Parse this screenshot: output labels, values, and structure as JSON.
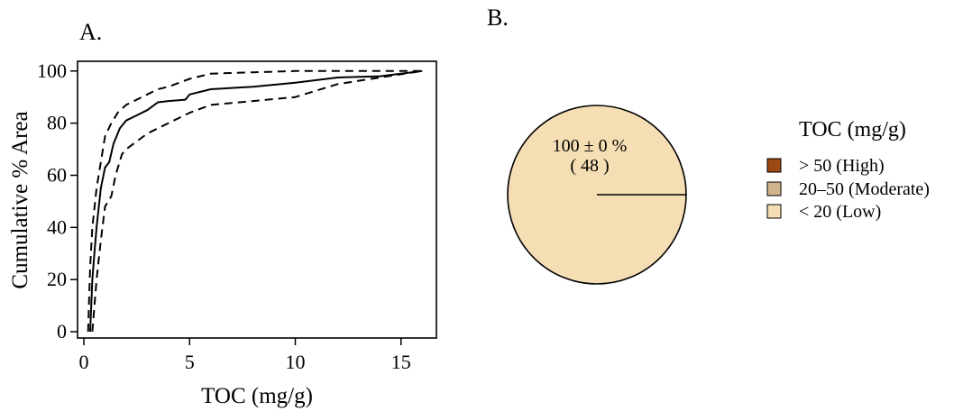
{
  "panels": {
    "a": {
      "label": "A."
    },
    "b": {
      "label": "B."
    }
  },
  "chart_data": [
    {
      "type": "line",
      "xlabel": "TOC (mg/g)",
      "ylabel": "Cumulative % Area",
      "xlim": [
        0,
        16.5
      ],
      "ylim": [
        0,
        100
      ],
      "xticks": [
        0,
        5,
        10,
        15
      ],
      "yticks": [
        0,
        20,
        40,
        60,
        80,
        100
      ],
      "grid": false,
      "series": [
        {
          "style": "solid",
          "color": "#000000",
          "points": [
            [
              0.3,
              0
            ],
            [
              0.4,
              20
            ],
            [
              0.5,
              30
            ],
            [
              0.6,
              40
            ],
            [
              0.8,
              55
            ],
            [
              1.0,
              63
            ],
            [
              1.2,
              65
            ],
            [
              1.4,
              72
            ],
            [
              1.7,
              78
            ],
            [
              2.0,
              81
            ],
            [
              2.5,
              83
            ],
            [
              3.0,
              85
            ],
            [
              3.5,
              88
            ],
            [
              4.0,
              88.5
            ],
            [
              4.8,
              89
            ],
            [
              5.0,
              91
            ],
            [
              6.0,
              93
            ],
            [
              8.0,
              94
            ],
            [
              10.0,
              95.5
            ],
            [
              12.0,
              97.5
            ],
            [
              14.0,
              98
            ],
            [
              15.0,
              99
            ],
            [
              16.0,
              100
            ]
          ]
        },
        {
          "style": "dashed",
          "color": "#000000",
          "points": [
            [
              0.2,
              0
            ],
            [
              0.3,
              25
            ],
            [
              0.4,
              40
            ],
            [
              0.6,
              55
            ],
            [
              0.8,
              65
            ],
            [
              1.0,
              75
            ],
            [
              1.3,
              80
            ],
            [
              1.6,
              84
            ],
            [
              2.0,
              87
            ],
            [
              2.5,
              89
            ],
            [
              3.0,
              91
            ],
            [
              3.5,
              93
            ],
            [
              4.0,
              94
            ],
            [
              5.0,
              97
            ],
            [
              6.0,
              99
            ],
            [
              8.0,
              99.5
            ],
            [
              10.0,
              100
            ],
            [
              16.0,
              100
            ]
          ]
        },
        {
          "style": "dashed",
          "color": "#000000",
          "points": [
            [
              0.4,
              0
            ],
            [
              0.6,
              20
            ],
            [
              0.8,
              35
            ],
            [
              1.0,
              48
            ],
            [
              1.3,
              52
            ],
            [
              1.5,
              60
            ],
            [
              1.8,
              68
            ],
            [
              2.0,
              70
            ],
            [
              2.5,
              73
            ],
            [
              3.0,
              76
            ],
            [
              4.0,
              80
            ],
            [
              5.0,
              84
            ],
            [
              6.0,
              87
            ],
            [
              8.0,
              88.5
            ],
            [
              10.0,
              90
            ],
            [
              12.0,
              95
            ],
            [
              14.0,
              97.5
            ],
            [
              16.0,
              100
            ]
          ]
        }
      ]
    },
    {
      "type": "pie",
      "slices": [
        {
          "category": "< 20 (Low)",
          "value": 100,
          "color": "#f5deb3"
        }
      ],
      "annotation": {
        "line1": "100 ± 0 %",
        "line2": "( 48 )"
      },
      "legend": {
        "title": "TOC (mg/g)",
        "placement": "right",
        "items": [
          {
            "label": "> 50 (High)",
            "color": "#9c4a12"
          },
          {
            "label": "20–50 (Moderate)",
            "color": "#d2b48c"
          },
          {
            "label": "< 20 (Low)",
            "color": "#f5deb3"
          }
        ]
      }
    }
  ]
}
